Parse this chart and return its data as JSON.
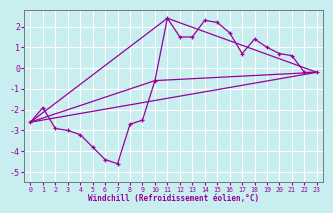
{
  "background_color": "#c8eef0",
  "grid_color": "#ffffff",
  "line_color": "#990099",
  "xlabel": "Windchill (Refroidissement éolien,°C)",
  "xlim": [
    -0.5,
    23.5
  ],
  "ylim": [
    -5.5,
    2.8
  ],
  "yticks": [
    -5,
    -4,
    -3,
    -2,
    -1,
    0,
    1,
    2
  ],
  "xticks": [
    0,
    1,
    2,
    3,
    4,
    5,
    6,
    7,
    8,
    9,
    10,
    11,
    12,
    13,
    14,
    15,
    16,
    17,
    18,
    19,
    20,
    21,
    22,
    23
  ],
  "data_line": {
    "x": [
      0,
      1,
      2,
      3,
      4,
      5,
      6,
      7,
      8,
      9,
      10,
      11,
      12,
      13,
      14,
      15,
      16,
      17,
      18,
      19,
      20,
      21,
      22,
      23
    ],
    "y": [
      -2.6,
      -1.9,
      -2.9,
      -3.0,
      -3.2,
      -3.8,
      -4.4,
      -4.6,
      -2.7,
      -2.5,
      -0.6,
      2.4,
      1.5,
      1.5,
      2.3,
      2.2,
      1.7,
      0.7,
      1.4,
      1.0,
      0.7,
      0.6,
      -0.2,
      -0.2
    ]
  },
  "line1": {
    "x": [
      0,
      23
    ],
    "y": [
      -2.6,
      -0.2
    ]
  },
  "line2": {
    "x": [
      0,
      10,
      23
    ],
    "y": [
      -2.6,
      -0.6,
      -0.2
    ]
  },
  "line3": {
    "x": [
      0,
      11,
      23
    ],
    "y": [
      -2.6,
      2.4,
      -0.2
    ]
  }
}
